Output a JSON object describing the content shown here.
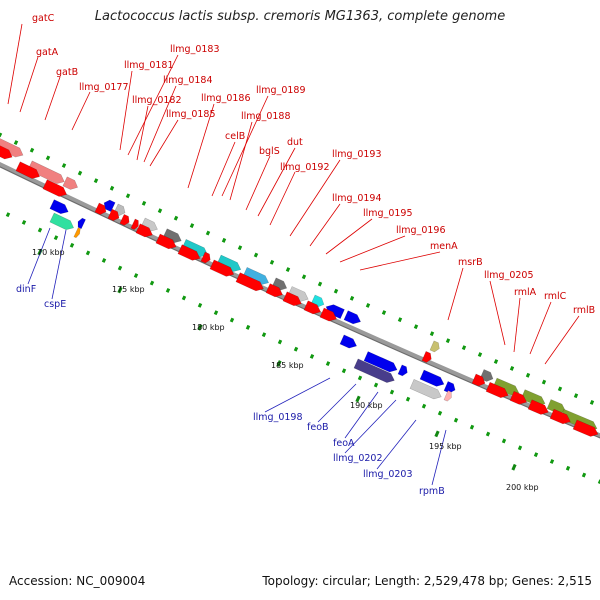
{
  "title": "Lactococcus lactis subsp. cremoris MG1363, complete genome",
  "footer": {
    "accession": "Accession: NC_009004",
    "topology": "Topology: circular; Length: 2,529,478 bp; Genes: 2,515"
  },
  "scale_labels": [
    "170 kbp",
    "175 kbp",
    "180 kbp",
    "185 kbp",
    "190 kbp",
    "195 kbp",
    "200 kbp"
  ],
  "upper_labels": [
    "gatC",
    "gatA",
    "gatB",
    "llmg_0177",
    "llmg_0181",
    "llmg_0183",
    "llmg_0182",
    "llmg_0184",
    "llmg_0185",
    "llmg_0186",
    "llmg_0189",
    "llmg_0188",
    "celB",
    "bglS",
    "dut",
    "llmg_0192",
    "llmg_0193",
    "llmg_0194",
    "llmg_0195",
    "llmg_0196",
    "menA",
    "msrB",
    "llmg_0205",
    "rmlA",
    "rmlC",
    "rmlB"
  ],
  "lower_labels": [
    "dinF",
    "cspE",
    "llmg_0198",
    "feoB",
    "feoA",
    "llmg_0202",
    "llmg_0203",
    "rpmB"
  ],
  "colors": {
    "backbone": "#808080",
    "forward_gene": "#ff0000",
    "reverse_gene": "#0000ee",
    "forward_label": "#cc0000",
    "reverse_label": "#1a1aa8",
    "tick": "#119911"
  }
}
